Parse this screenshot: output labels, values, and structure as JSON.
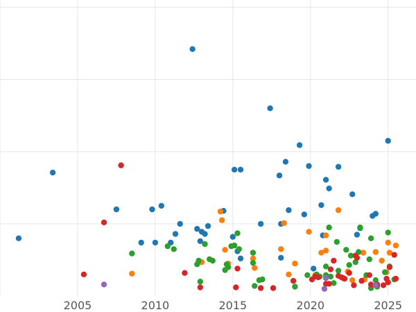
{
  "chart_data": {
    "type": "scatter",
    "title": "",
    "xlabel": "",
    "ylabel": "",
    "xlim": [
      2000.0,
      2026.8
    ],
    "ylim": [
      0,
      410
    ],
    "x_ticks": [
      2005,
      2010,
      2015,
      2020,
      2025
    ],
    "x_tick_labels": [
      "2005",
      "2010",
      "2015",
      "2020",
      "2025"
    ],
    "y_gridlines": [
      100,
      200,
      300,
      400
    ],
    "y_tick_labels_visible": false,
    "grid": true,
    "legend": "none",
    "series": [
      {
        "color": "#1f77b4",
        "points": [
          [
            2001.2,
            80
          ],
          [
            2003.4,
            171
          ],
          [
            2007.5,
            120
          ],
          [
            2009.1,
            74
          ],
          [
            2009.8,
            120
          ],
          [
            2010.0,
            74
          ],
          [
            2010.4,
            125
          ],
          [
            2011.0,
            74
          ],
          [
            2011.3,
            86
          ],
          [
            2011.6,
            100
          ],
          [
            2012.4,
            342
          ],
          [
            2012.7,
            93
          ],
          [
            2012.9,
            76
          ],
          [
            2013.0,
            89
          ],
          [
            2013.2,
            86
          ],
          [
            2013.4,
            97
          ],
          [
            2014.4,
            118
          ],
          [
            2015.0,
            82
          ],
          [
            2015.1,
            175
          ],
          [
            2015.3,
            62
          ],
          [
            2015.5,
            175
          ],
          [
            2015.5,
            52
          ],
          [
            2016.8,
            100
          ],
          [
            2017.4,
            260
          ],
          [
            2018.0,
            167
          ],
          [
            2018.1,
            100
          ],
          [
            2018.1,
            53
          ],
          [
            2018.4,
            186
          ],
          [
            2018.6,
            119
          ],
          [
            2019.3,
            209
          ],
          [
            2019.6,
            113
          ],
          [
            2019.9,
            180
          ],
          [
            2020.2,
            38
          ],
          [
            2020.7,
            126
          ],
          [
            2020.8,
            84
          ],
          [
            2021.0,
            161
          ],
          [
            2021.2,
            149
          ],
          [
            2021.8,
            179
          ],
          [
            2022.7,
            141
          ],
          [
            2023.0,
            85
          ],
          [
            2023.2,
            94
          ],
          [
            2024.0,
            111
          ],
          [
            2024.2,
            114
          ],
          [
            2025.0,
            215
          ]
        ]
      },
      {
        "color": "#ff7f0e",
        "points": [
          [
            2008.5,
            31
          ],
          [
            2013.0,
            47
          ],
          [
            2014.2,
            117
          ],
          [
            2014.3,
            105
          ],
          [
            2014.5,
            64
          ],
          [
            2014.7,
            45
          ],
          [
            2016.3,
            52
          ],
          [
            2016.4,
            39
          ],
          [
            2018.1,
            65
          ],
          [
            2018.3,
            101
          ],
          [
            2018.6,
            30
          ],
          [
            2019.0,
            45
          ],
          [
            2019.9,
            89
          ],
          [
            2020.3,
            29
          ],
          [
            2020.7,
            60
          ],
          [
            2021.0,
            63
          ],
          [
            2021.0,
            84
          ],
          [
            2021.8,
            119
          ],
          [
            2022.4,
            34
          ],
          [
            2022.7,
            22
          ],
          [
            2023.4,
            60
          ],
          [
            2023.5,
            23
          ],
          [
            2024.2,
            61
          ],
          [
            2024.6,
            49
          ],
          [
            2024.9,
            33
          ],
          [
            2025.0,
            74
          ],
          [
            2025.1,
            60
          ],
          [
            2025.5,
            70
          ]
        ]
      },
      {
        "color": "#2ca02c",
        "points": [
          [
            2008.5,
            59
          ],
          [
            2010.8,
            69
          ],
          [
            2011.2,
            65
          ],
          [
            2012.7,
            44
          ],
          [
            2012.8,
            49
          ],
          [
            2012.9,
            20
          ],
          [
            2013.2,
            72
          ],
          [
            2013.5,
            51
          ],
          [
            2013.7,
            49
          ],
          [
            2014.5,
            36
          ],
          [
            2014.6,
            44
          ],
          [
            2014.7,
            40
          ],
          [
            2014.9,
            69
          ],
          [
            2015.1,
            70
          ],
          [
            2015.3,
            87
          ],
          [
            2015.4,
            65
          ],
          [
            2016.3,
            60
          ],
          [
            2016.3,
            46
          ],
          [
            2016.4,
            14
          ],
          [
            2016.7,
            22
          ],
          [
            2016.9,
            23
          ],
          [
            2019.0,
            13
          ],
          [
            2019.8,
            29
          ],
          [
            2020.4,
            30
          ],
          [
            2020.6,
            27
          ],
          [
            2021.0,
            41
          ],
          [
            2021.0,
            29
          ],
          [
            2021.2,
            95
          ],
          [
            2021.3,
            27
          ],
          [
            2021.5,
            18
          ],
          [
            2021.7,
            75
          ],
          [
            2021.8,
            35
          ],
          [
            2022.1,
            25
          ],
          [
            2022.3,
            64
          ],
          [
            2022.5,
            43
          ],
          [
            2022.6,
            56
          ],
          [
            2022.9,
            47
          ],
          [
            2023.1,
            61
          ],
          [
            2023.2,
            95
          ],
          [
            2023.6,
            29
          ],
          [
            2023.8,
            51
          ],
          [
            2023.9,
            80
          ],
          [
            2023.9,
            11
          ],
          [
            2024.2,
            22
          ],
          [
            2024.3,
            13
          ],
          [
            2024.8,
            33
          ],
          [
            2025.0,
            88
          ],
          [
            2025.1,
            41
          ],
          [
            2025.4,
            23
          ]
        ]
      },
      {
        "color": "#d62728",
        "points": [
          [
            2005.4,
            30
          ],
          [
            2006.7,
            102
          ],
          [
            2007.8,
            181
          ],
          [
            2011.9,
            32
          ],
          [
            2012.9,
            12
          ],
          [
            2015.2,
            12
          ],
          [
            2015.3,
            38
          ],
          [
            2016.8,
            11
          ],
          [
            2017.6,
            11
          ],
          [
            2018.9,
            21
          ],
          [
            2020.1,
            23
          ],
          [
            2020.5,
            26
          ],
          [
            2021.0,
            17
          ],
          [
            2021.2,
            17
          ],
          [
            2021.5,
            49
          ],
          [
            2021.8,
            28
          ],
          [
            2022.0,
            26
          ],
          [
            2022.2,
            24
          ],
          [
            2022.5,
            32
          ],
          [
            2022.8,
            15
          ],
          [
            2023.0,
            53
          ],
          [
            2023.3,
            21
          ],
          [
            2023.8,
            29
          ],
          [
            2023.9,
            16
          ],
          [
            2024.3,
            16
          ],
          [
            2024.7,
            15
          ],
          [
            2025.0,
            19
          ],
          [
            2025.1,
            40
          ],
          [
            2025.4,
            57
          ],
          [
            2025.5,
            24
          ],
          [
            2020.3,
            27
          ],
          [
            2021.3,
            37
          ],
          [
            2024.9,
            24
          ],
          [
            2022.9,
            56
          ]
        ]
      },
      {
        "color": "#9467bd",
        "points": [
          [
            2006.7,
            16
          ],
          [
            2020.9,
            10
          ],
          [
            2021.0,
            25
          ],
          [
            2024.2,
            15
          ]
        ]
      }
    ]
  }
}
